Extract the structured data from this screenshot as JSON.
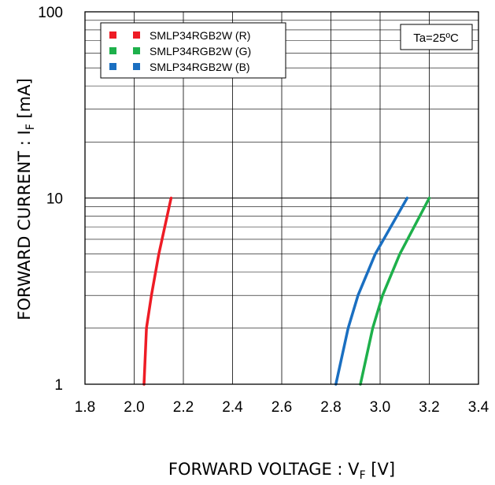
{
  "chart_data": {
    "type": "line",
    "title": "",
    "xlabel_main": "FORWARD VOLTAGE : V",
    "xlabel_sub": "F",
    "xlabel_unit": " [V]",
    "ylabel_main": "FORWARD CURRENT : I",
    "ylabel_sub": "F",
    "ylabel_unit": " [mA]",
    "xlim": [
      1.8,
      3.4
    ],
    "ylim": [
      1,
      100
    ],
    "yscale": "log",
    "grid": true,
    "x_ticks": [
      "1.8",
      "2.0",
      "2.2",
      "2.4",
      "2.6",
      "2.8",
      "3.0",
      "3.2",
      "3.4"
    ],
    "y_ticks": [
      "1",
      "10",
      "100"
    ],
    "legend_position": "top-left",
    "annotation": "Ta=25ºC",
    "series": [
      {
        "name": "SMLP34RGB2W (R)",
        "color": "#ee1c25",
        "points": [
          [
            2.04,
            1
          ],
          [
            2.05,
            2
          ],
          [
            2.07,
            3
          ],
          [
            2.1,
            5
          ],
          [
            2.15,
            10
          ]
        ]
      },
      {
        "name": "SMLP34RGB2W (G)",
        "color": "#1eb04b",
        "points": [
          [
            2.92,
            1
          ],
          [
            2.97,
            2
          ],
          [
            3.01,
            3
          ],
          [
            3.08,
            5
          ],
          [
            3.2,
            10
          ]
        ]
      },
      {
        "name": "SMLP34RGB2W (B)",
        "color": "#1a6fc1",
        "points": [
          [
            2.82,
            1
          ],
          [
            2.87,
            2
          ],
          [
            2.91,
            3
          ],
          [
            2.98,
            5
          ],
          [
            3.11,
            10
          ]
        ]
      }
    ]
  }
}
